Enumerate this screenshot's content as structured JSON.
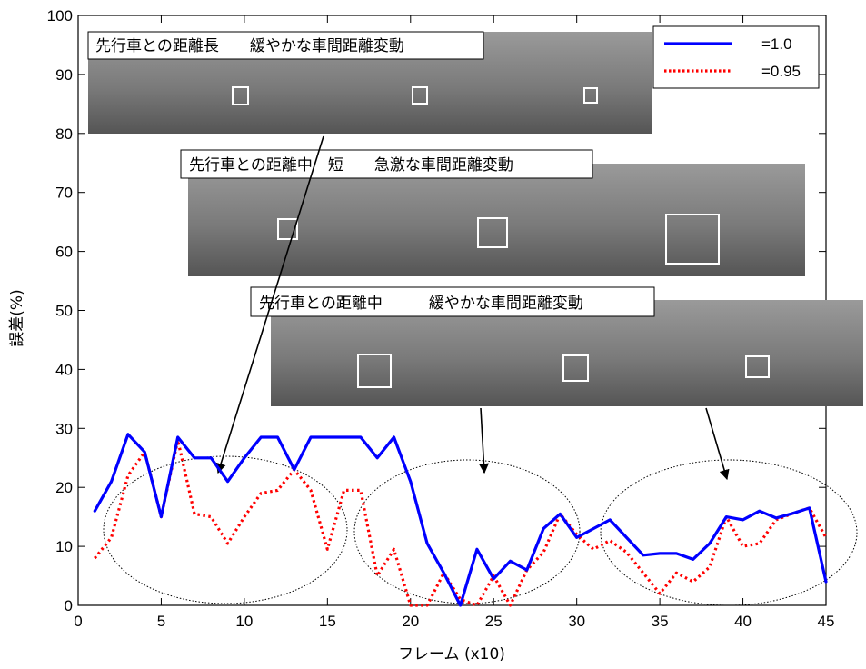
{
  "chart_data": {
    "type": "line",
    "title": "",
    "xlabel": "フレーム (x10)",
    "ylabel": "誤差(%)",
    "xlim": [
      0,
      45
    ],
    "ylim": [
      0,
      100
    ],
    "xticks": [
      0,
      5,
      10,
      15,
      20,
      25,
      30,
      35,
      40,
      45
    ],
    "yticks": [
      0,
      10,
      20,
      30,
      40,
      50,
      60,
      70,
      80,
      90,
      100
    ],
    "grid": false,
    "legend_position": "top-right",
    "series": [
      {
        "name": "=1.0",
        "color": "#0000ff",
        "style": "solid",
        "x": [
          1,
          2,
          3,
          4,
          5,
          6,
          7,
          8,
          9,
          10,
          11,
          12,
          13,
          14,
          15,
          16,
          17,
          18,
          19,
          20,
          21,
          22,
          23,
          24,
          25,
          26,
          27,
          28,
          29,
          30,
          31,
          32,
          33,
          34,
          35,
          36,
          37,
          38,
          39,
          40,
          41,
          42,
          43,
          44,
          45
        ],
        "y": [
          16,
          21,
          29,
          26,
          15,
          28.5,
          25,
          25,
          21,
          25,
          28.5,
          28.5,
          23,
          28.5,
          28.5,
          28.5,
          28.5,
          25,
          28.5,
          21,
          10.5,
          5.5,
          0,
          9.5,
          4.5,
          7.5,
          6,
          13,
          15.5,
          11.5,
          13,
          14.5,
          11.5,
          8.5,
          8.8,
          8.8,
          7.8,
          10.5,
          15,
          14.5,
          16,
          14.8,
          15.6,
          16.5,
          4
        ]
      },
      {
        "name": "=0.95",
        "color": "#ff0000",
        "style": "dotted",
        "x": [
          1,
          2,
          3,
          4,
          5,
          6,
          7,
          8,
          9,
          10,
          11,
          12,
          13,
          14,
          15,
          16,
          17,
          18,
          19,
          20,
          21,
          22,
          23,
          24,
          25,
          26,
          27,
          28,
          29,
          30,
          31,
          32,
          33,
          34,
          35,
          36,
          37,
          38,
          39,
          40,
          41,
          42,
          43,
          44,
          45
        ],
        "y": [
          8,
          11.5,
          22,
          26,
          15,
          28,
          15.5,
          15,
          10.5,
          15,
          19,
          19.5,
          23,
          19.5,
          9.5,
          19.5,
          19.5,
          5,
          9.5,
          0,
          0,
          5.5,
          1,
          0,
          5,
          0,
          6,
          9,
          15.5,
          12,
          9.5,
          11,
          9,
          5.5,
          2,
          5.5,
          4,
          6.5,
          15,
          10,
          10.5,
          14.5,
          15.6,
          16.5,
          11.5
        ]
      }
    ],
    "annotations": [
      {
        "text": "先行車との距離長　　緩やかな車間距離変動"
      },
      {
        "text": "先行車との距離中　短　　急激な車間距離変動"
      },
      {
        "text": "先行車との距離中　　　緩やかな車間距離変動"
      }
    ]
  },
  "colors": {
    "axis": "#000000",
    "photo_background": "#8c8c8c"
  }
}
